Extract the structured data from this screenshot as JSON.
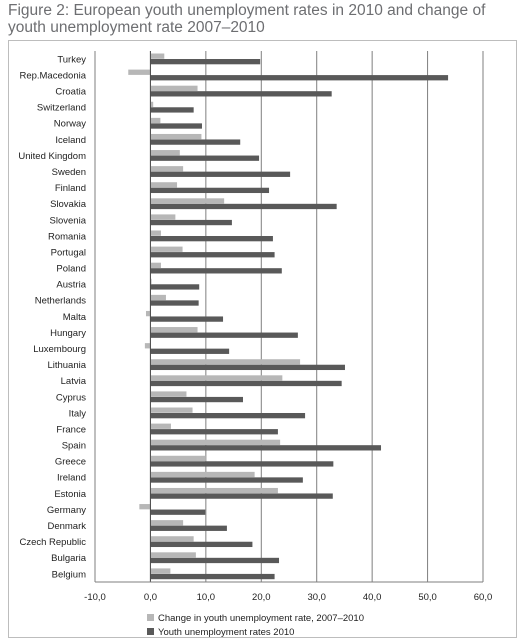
{
  "title": "Figure 2: European youth unemployment rates in 2010 and change of youth unemployment rate 2007–2010",
  "chart_data": {
    "type": "bar",
    "orientation": "horizontal",
    "title": "Figure 2: European youth unemployment rates in 2010 and change of youth unemployment rate 2007–2010",
    "categories": [
      "Turkey",
      "Rep.Macedonia",
      "Croatia",
      "Switzerland",
      "Norway",
      "Iceland",
      "United Kingdom",
      "Sweden",
      "Finland",
      "Slovakia",
      "Slovenia",
      "Romania",
      "Portugal",
      "Poland",
      "Austria",
      "Netherlands",
      "Malta",
      "Hungary",
      "Luxembourg",
      "Lithuania",
      "Latvia",
      "Cyprus",
      "Italy",
      "France",
      "Spain",
      "Greece",
      "Ireland",
      "Estonia",
      "Germany",
      "Denmark",
      "Czech Republic",
      "Bulgaria",
      "Belgium"
    ],
    "series": [
      {
        "name": "Change in youth unemployment rate, 2007–2010",
        "color": "#b7b7b7",
        "values": [
          2.5,
          -4.0,
          8.5,
          0.5,
          1.8,
          9.2,
          5.3,
          5.9,
          4.8,
          13.3,
          4.5,
          1.9,
          5.8,
          1.9,
          0.2,
          2.8,
          -0.8,
          8.5,
          -1.0,
          27.0,
          23.8,
          6.5,
          7.6,
          3.7,
          23.4,
          10.0,
          18.8,
          23.0,
          -2.0,
          5.9,
          7.8,
          8.2,
          3.6
        ]
      },
      {
        "name": "Youth unemployment rates 2010",
        "color": "#595959",
        "values": [
          19.8,
          53.7,
          32.7,
          7.8,
          9.3,
          16.2,
          19.6,
          25.2,
          21.4,
          33.6,
          14.7,
          22.1,
          22.4,
          23.7,
          8.8,
          8.7,
          13.1,
          26.6,
          14.2,
          35.1,
          34.5,
          16.7,
          27.9,
          23.0,
          41.6,
          33.0,
          27.5,
          32.9,
          9.9,
          13.8,
          18.4,
          23.2,
          22.4
        ]
      }
    ],
    "ticks": [
      "-10,0",
      "0,0",
      "10,0",
      "20,0",
      "30,0",
      "40,0",
      "50,0",
      "60,0"
    ],
    "xlim": [
      -10,
      60
    ],
    "grid": true,
    "legend_position": "bottom"
  }
}
